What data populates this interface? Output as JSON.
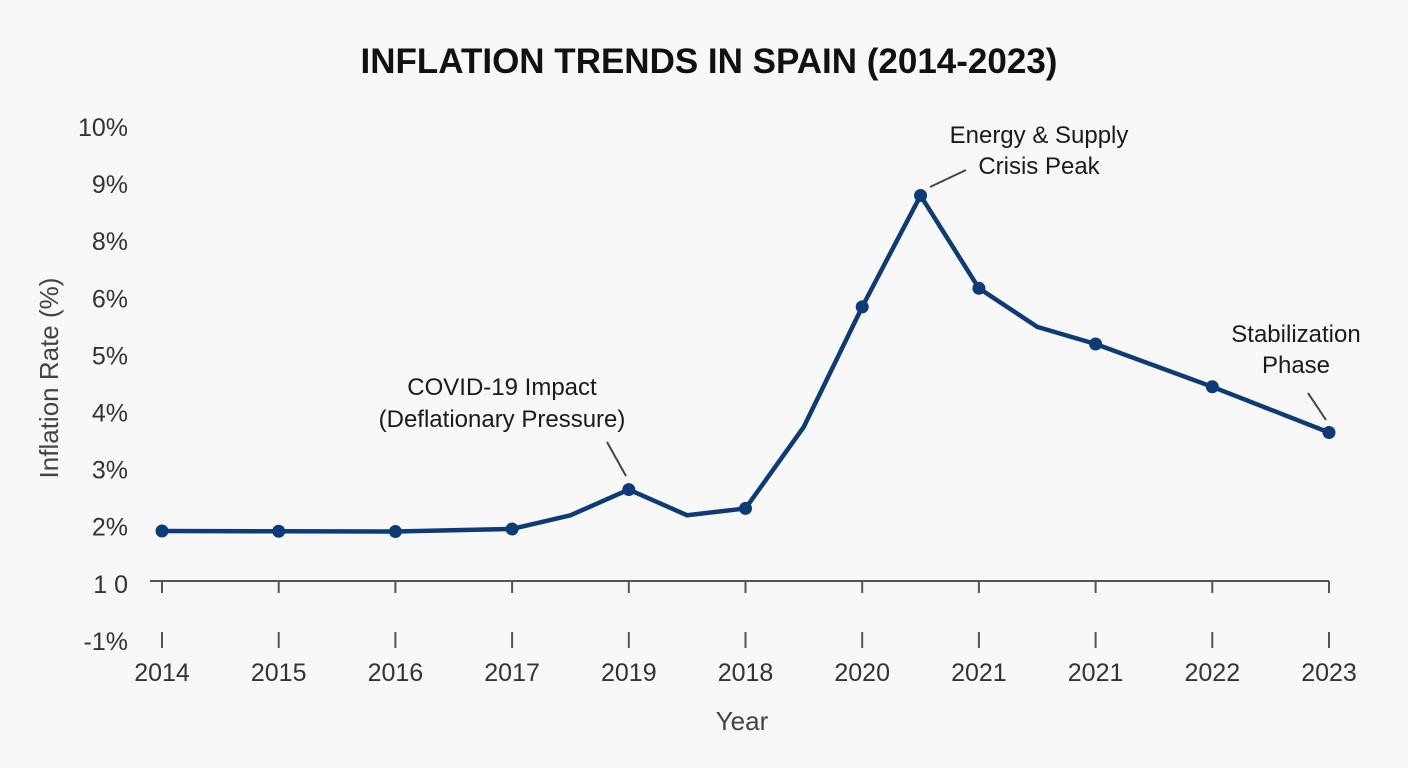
{
  "chart_data": {
    "type": "line",
    "title": "INFLATION TRENDS IN SPAIN (2014-2023)",
    "xlabel": "Year",
    "ylabel": "Inflation Rate (%)",
    "x_tick_labels": [
      "2014",
      "2015",
      "2016",
      "2017",
      "2019",
      "2018",
      "2020",
      "2021",
      "2021",
      "2022",
      "2023"
    ],
    "y_tick_labels": [
      "10%",
      "9%",
      "8%",
      "6%",
      "5%",
      "4%",
      "3%",
      "2%",
      "1 0",
      "-1%"
    ],
    "grid": false,
    "series": [
      {
        "color": "#0d3b78",
        "points": [
          {
            "x": 0,
            "y": 1.85,
            "marker": true
          },
          {
            "x": 1,
            "y": 1.84,
            "marker": true
          },
          {
            "x": 2,
            "y": 1.83,
            "marker": true
          },
          {
            "x": 3,
            "y": 1.92,
            "marker": true
          },
          {
            "x": 3.5,
            "y": 2.2,
            "marker": false
          },
          {
            "x": 4,
            "y": 2.65,
            "marker": true
          },
          {
            "x": 4.5,
            "y": 2.2,
            "marker": false
          },
          {
            "x": 5,
            "y": 2.32,
            "marker": true
          },
          {
            "x": 5.5,
            "y": 3.75,
            "marker": false
          },
          {
            "x": 6,
            "y": 5.85,
            "marker": true
          },
          {
            "x": 6.5,
            "y": 8.8,
            "marker": true
          },
          {
            "x": 7,
            "y": 6.35,
            "marker": true
          },
          {
            "x": 7.5,
            "y": 5.5,
            "marker": false
          },
          {
            "x": 8,
            "y": 5.2,
            "marker": true
          },
          {
            "x": 9,
            "y": 4.45,
            "marker": true
          },
          {
            "x": 10,
            "y": 3.65,
            "marker": true
          }
        ]
      }
    ],
    "annotations": [
      {
        "lines": [
          "COVID-19 Impact",
          "(Deflationary Pressure)"
        ],
        "x": 4,
        "y": 2.65
      },
      {
        "lines": [
          "Energy & Supply",
          "Crisis Peak"
        ],
        "x": 6.5,
        "y": 8.8
      },
      {
        "lines": [
          "Stabilization",
          "Phase"
        ],
        "x": 10,
        "y": 3.65
      }
    ]
  }
}
